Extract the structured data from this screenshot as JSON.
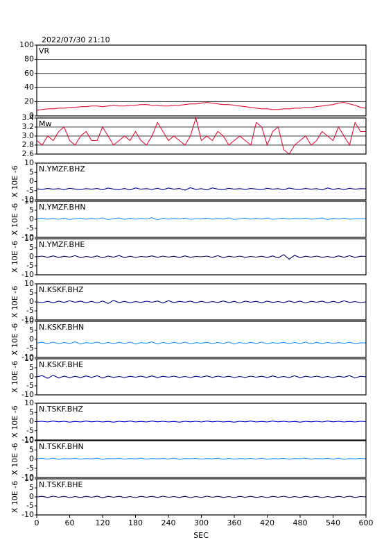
{
  "chart_data": {
    "type": "line",
    "title": "2022/07/30 21:10",
    "xlabel": "SEC",
    "xlim": [
      0,
      600
    ],
    "xticks": [
      0,
      60,
      120,
      180,
      240,
      300,
      360,
      420,
      480,
      540,
      600
    ],
    "x": [
      0,
      10,
      20,
      30,
      40,
      50,
      60,
      70,
      80,
      90,
      100,
      110,
      120,
      130,
      140,
      150,
      160,
      170,
      180,
      190,
      200,
      210,
      220,
      230,
      240,
      250,
      260,
      270,
      280,
      290,
      300,
      310,
      320,
      330,
      340,
      350,
      360,
      370,
      380,
      390,
      400,
      410,
      420,
      430,
      440,
      450,
      460,
      470,
      480,
      490,
      500,
      510,
      520,
      530,
      540,
      550,
      560,
      570,
      580,
      590,
      600
    ],
    "panels": [
      {
        "name": "VR",
        "ylim": [
          0,
          100
        ],
        "yticks": [
          0,
          20,
          40,
          60,
          80,
          100
        ],
        "grid": true,
        "color": "#dc143c",
        "values": [
          8,
          9,
          10,
          10,
          11,
          11,
          12,
          12,
          13,
          13,
          14,
          14,
          13,
          14,
          15,
          14,
          14,
          15,
          15,
          16,
          16,
          15,
          15,
          14,
          14,
          15,
          15,
          16,
          17,
          17,
          18,
          19,
          18,
          17,
          16,
          16,
          15,
          14,
          13,
          12,
          11,
          10,
          10,
          9,
          9,
          10,
          10,
          11,
          11,
          12,
          12,
          13,
          14,
          15,
          16,
          18,
          19,
          17,
          15,
          12,
          11
        ]
      },
      {
        "name": "Mw",
        "ylim": [
          2.6,
          3.4
        ],
        "yticks": [
          2.6,
          2.8,
          {
            "value": 3,
            "label": "3.0"
          },
          3.2,
          3.4
        ],
        "grid": true,
        "color": "#dc143c",
        "values": [
          2.9,
          2.8,
          3.0,
          2.9,
          3.1,
          3.2,
          2.9,
          2.8,
          3.0,
          3.1,
          2.9,
          2.9,
          3.2,
          3.0,
          2.8,
          2.9,
          3.0,
          2.9,
          3.1,
          2.9,
          2.8,
          3.0,
          3.3,
          3.1,
          2.9,
          3.0,
          2.9,
          2.8,
          3.0,
          3.4,
          2.9,
          3.0,
          2.9,
          3.1,
          3.0,
          2.8,
          2.9,
          3.0,
          2.9,
          2.8,
          3.3,
          3.2,
          2.8,
          3.1,
          3.2,
          2.7,
          2.6,
          2.8,
          2.9,
          3.0,
          2.8,
          2.9,
          3.1,
          3.0,
          2.9,
          3.2,
          3.0,
          2.8,
          3.3,
          3.1,
          3.1
        ]
      },
      {
        "name": "N.YMZF.BHZ",
        "ylabel": "X 10E -6",
        "ylim": [
          -10,
          10
        ],
        "yticks": [
          -10,
          -5,
          0,
          5,
          10
        ],
        "grid": false,
        "color": "#00008b",
        "values": [
          -4,
          -4.3,
          -3.8,
          -4.2,
          -3.9,
          -4.4,
          -3.7,
          -4.1,
          -4.3,
          -3.9,
          -4.2,
          -3.8,
          -4.5,
          -3.6,
          -4.1,
          -4.4,
          -3.8,
          -4.6,
          -3.5,
          -4.2,
          -3.9,
          -4.3,
          -3.7,
          -4.5,
          -3.6,
          -4.2,
          -3.8,
          -4.7,
          -3.4,
          -4.3,
          -3.9,
          -4.6,
          -3.5,
          -4.1,
          -4.4,
          -3.7,
          -4.2,
          -3.9,
          -4.3,
          -3.8,
          -4.1,
          -4.4,
          -3.7,
          -4.2,
          -3.9,
          -4.5,
          -3.6,
          -4.1,
          -4.3,
          -3.8,
          -4.2,
          -3.9,
          -4.6,
          -3.5,
          -4.3,
          -3.8,
          -4.4,
          -3.7,
          -4.2,
          -3.9,
          -4
        ]
      },
      {
        "name": "N.YMZF.BHN",
        "ylabel": "X 10E -6",
        "ylim": [
          -10,
          10
        ],
        "yticks": [
          -10,
          -5,
          0,
          5,
          10
        ],
        "grid": false,
        "color": "#1e90ff",
        "values": [
          0.3,
          0.6,
          0.1,
          0.5,
          0,
          0.7,
          -0.1,
          0.4,
          0.6,
          0.1,
          0.5,
          0.2,
          0.8,
          -0.2,
          0.4,
          0.7,
          0,
          0.6,
          0.1,
          0.5,
          0.2,
          0.9,
          -0.3,
          0.6,
          0.1,
          0.5,
          0.2,
          0.7,
          0,
          0.4,
          0.3,
          0.6,
          0.1,
          0.5,
          0.2,
          0.8,
          -0.1,
          0.4,
          0.6,
          0.1,
          0.5,
          0.2,
          0.7,
          0,
          0.4,
          0.6,
          0.1,
          0.5,
          0.3,
          0.6,
          0.1,
          0.4,
          0.7,
          -0.1,
          0.5,
          0.2,
          0.6,
          0.1,
          0.4,
          0.3,
          0.3
        ]
      },
      {
        "name": "N.YMZF.BHE",
        "ylabel": "X 10E -6",
        "ylim": [
          -10,
          10
        ],
        "yticks": [
          -10,
          -5,
          0,
          5,
          10
        ],
        "grid": false,
        "color": "#000060",
        "values": [
          0,
          0.4,
          -0.3,
          0.5,
          -0.4,
          0.3,
          -0.2,
          0.6,
          -0.5,
          0.2,
          -0.3,
          0.5,
          -0.6,
          0.4,
          -0.2,
          0.7,
          -0.5,
          0.3,
          -0.4,
          0.2,
          -0.1,
          0.5,
          -0.3,
          0.4,
          -0.2,
          0.3,
          -0.4,
          0.5,
          -0.3,
          0.2,
          0,
          0.4,
          -0.3,
          0.6,
          -0.5,
          0.3,
          -0.2,
          0.4,
          -0.3,
          0.2,
          -0.2,
          0.3,
          -0.4,
          0.5,
          -0.6,
          1.2,
          -1.3,
          0.8,
          -0.5,
          0.3,
          -0.2,
          0.4,
          -0.3,
          0.2,
          -0.4,
          0.5,
          -0.3,
          0.6,
          -0.4,
          0.3,
          0.2
        ]
      },
      {
        "name": "N.KSKF.BHZ",
        "ylabel": "X 10E -6",
        "ylim": [
          -10,
          10
        ],
        "yticks": [
          -10,
          -5,
          0,
          5,
          10
        ],
        "grid": false,
        "color": "#00008b",
        "values": [
          0,
          -0.4,
          0.3,
          -0.5,
          0.4,
          -0.3,
          0.6,
          -0.2,
          0.4,
          -0.5,
          0.3,
          -0.6,
          0.5,
          -0.9,
          0.8,
          -0.4,
          0.3,
          -0.5,
          0.2,
          -0.3,
          0.4,
          -0.2,
          0.5,
          -0.6,
          0.7,
          -0.4,
          0.3,
          -0.2,
          0.4,
          -0.5,
          0.3,
          -0.4,
          0.2,
          -0.3,
          0.5,
          -0.4,
          0.3,
          -0.6,
          0.4,
          -0.2,
          0.3,
          -0.5,
          0.4,
          -0.3,
          0.2,
          -0.4,
          0.5,
          -0.3,
          0.4,
          -0.6,
          0.3,
          -0.2,
          0.4,
          -0.5,
          0.3,
          -0.4,
          0.6,
          -0.3,
          0.2,
          -0.4,
          0
        ]
      },
      {
        "name": "N.KSKF.BHN",
        "ylabel": "X 10E -6",
        "ylim": [
          -10,
          10
        ],
        "yticks": [
          -10,
          -5,
          0,
          5,
          10
        ],
        "grid": false,
        "color": "#1e90ff",
        "values": [
          -2,
          -1.6,
          -2.4,
          -1.5,
          -2.5,
          -1.7,
          -2.3,
          -1.4,
          -2.6,
          -1.8,
          -2.2,
          -1.5,
          -2.5,
          -1.7,
          -2.4,
          -1.6,
          -2.3,
          -1.5,
          -2.6,
          -1.8,
          -2.2,
          -1.4,
          -2.6,
          -1.7,
          -2.3,
          -1.6,
          -2.4,
          -1.5,
          -2.5,
          -1.8,
          -2.2,
          -1.6,
          -2.4,
          -1.7,
          -2.3,
          -1.5,
          -2.6,
          -1.7,
          -2.4,
          -1.6,
          -2.3,
          -1.5,
          -2.5,
          -1.8,
          -2.2,
          -1.6,
          -2.4,
          -1.7,
          -2.3,
          -1.5,
          -2.5,
          -1.6,
          -2.4,
          -1.7,
          -2.3,
          -1.8,
          -2.2,
          -1.6,
          -2.4,
          -1.9,
          -2
        ]
      },
      {
        "name": "N.KSKF.BHE",
        "ylabel": "X 10E -6",
        "ylim": [
          -10,
          10
        ],
        "yticks": [
          -10,
          -5,
          0,
          5,
          10
        ],
        "grid": false,
        "color": "#000080",
        "values": [
          0,
          0.7,
          -0.8,
          0.9,
          -0.6,
          0.4,
          -0.5,
          0.3,
          -0.4,
          0.5,
          -0.3,
          0.6,
          -0.7,
          0.4,
          -0.3,
          0.2,
          -0.4,
          0.3,
          -0.2,
          0.4,
          -0.3,
          0.5,
          -0.4,
          0.3,
          -0.2,
          0.4,
          -0.3,
          0.2,
          -0.4,
          0.3,
          -0.2,
          0.5,
          -0.3,
          0.4,
          -0.2,
          0.3,
          -0.4,
          0.2,
          -0.3,
          0.4,
          -0.2,
          0.3,
          -0.4,
          0.5,
          -0.3,
          0.2,
          -0.4,
          0.6,
          -0.5,
          0.3,
          -0.2,
          0.4,
          -0.3,
          0.2,
          -0.4,
          0.3,
          -0.2,
          0.7,
          -0.6,
          0.3,
          0
        ]
      },
      {
        "name": "N.TSKF.BHZ",
        "ylabel": "X 10E -6",
        "ylim": [
          -10,
          10
        ],
        "yticks": [
          -10,
          -5,
          0,
          5,
          10
        ],
        "grid": false,
        "color": "#0000cd",
        "values": [
          0,
          0.2,
          -0.2,
          0.3,
          -0.1,
          0.2,
          -0.3,
          0.1,
          -0.2,
          0.3,
          -0.1,
          0.2,
          -0.2,
          0.1,
          -0.3,
          0.2,
          -0.1,
          0.3,
          -0.2,
          0.1,
          -0.2,
          0.3,
          -0.1,
          0.2,
          -0.2,
          0.1,
          -0.3,
          0.2,
          -0.1,
          0.2,
          -0.2,
          0.3,
          -0.1,
          0.2,
          -0.2,
          0.1,
          -0.3,
          0.2,
          -0.1,
          0.3,
          -0.2,
          0.1,
          -0.2,
          0.3,
          -0.1,
          0.2,
          -0.2,
          0.1,
          -0.3,
          0.2,
          -0.1,
          0.2,
          -0.2,
          0.3,
          -0.1,
          0.2,
          -0.2,
          0.1,
          -0.2,
          0.2,
          0
        ]
      },
      {
        "name": "N.TSKF.BHN",
        "ylabel": "X 10E -6",
        "ylim": [
          -10,
          10
        ],
        "yticks": [
          -10,
          -5,
          0,
          5,
          10
        ],
        "grid": false,
        "color": "#1e90ff",
        "values": [
          0.2,
          0.4,
          0,
          0.5,
          -0.1,
          0.3,
          0.1,
          0.4,
          0,
          0.3,
          0.1,
          0.5,
          -0.1,
          0.3,
          0.2,
          0.4,
          0,
          0.3,
          0.1,
          0.5,
          0,
          0.3,
          0.1,
          0.4,
          0,
          0.5,
          -0.1,
          0.3,
          0.2,
          0.4,
          0,
          0.3,
          0.1,
          0.5,
          -0.1,
          0.4,
          0,
          0.3,
          0.1,
          0.4,
          0,
          0.5,
          -0.1,
          0.3,
          0.1,
          0.4,
          0,
          0.3,
          0.2,
          0.5,
          0,
          0.3,
          0.1,
          0.4,
          0,
          0.5,
          -0.1,
          0.3,
          0.1,
          0.4,
          0.2
        ]
      },
      {
        "name": "N.TSKF.BHE",
        "ylabel": "X 10E -6",
        "ylim": [
          -10,
          10
        ],
        "yticks": [
          -10,
          -5,
          0,
          5,
          10
        ],
        "grid": false,
        "color": "#000060",
        "values": [
          0,
          0.3,
          -0.3,
          0.4,
          -0.2,
          0.3,
          -0.4,
          0.2,
          -0.3,
          0.3,
          -0.2,
          0.4,
          -0.5,
          0.3,
          -0.2,
          0.3,
          -0.3,
          0.2,
          -0.4,
          0.3,
          -0.2,
          0.3,
          -0.3,
          0.4,
          -0.2,
          0.2,
          -0.3,
          0.3,
          -0.4,
          0.2,
          -0.3,
          0.4,
          -0.2,
          0.3,
          -0.3,
          0.2,
          -0.4,
          0.3,
          -0.2,
          0.3,
          -0.3,
          0.2,
          -0.4,
          0.3,
          -0.2,
          0.4,
          -0.3,
          0.2,
          -0.3,
          0.3,
          -0.2,
          0.3,
          -0.4,
          0.2,
          -0.3,
          0.3,
          -0.2,
          0.4,
          -0.3,
          0.2,
          0
        ]
      }
    ]
  }
}
